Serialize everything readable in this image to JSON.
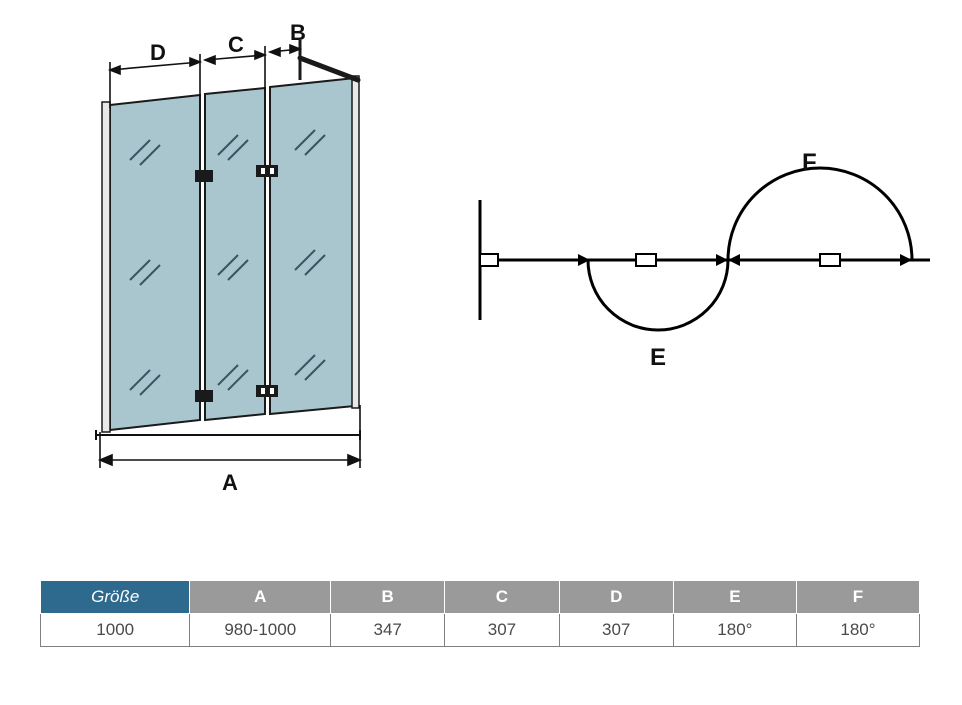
{
  "diagram": {
    "labels": {
      "A": "A",
      "B": "B",
      "C": "C",
      "D": "D",
      "E": "E",
      "F": "F"
    },
    "panel_fill": "#a9c6cf",
    "panel_stroke": "#1a1a1a",
    "frame_color": "#1a1a1a",
    "glass_hatch_color": "#3a5560",
    "dim_line_color": "#111111",
    "swing_line_color": "#000000"
  },
  "table": {
    "header_first_bg": "#2e6a8e",
    "header_rest_bg": "#9a9a9a",
    "columns": [
      "Größe",
      "A",
      "B",
      "C",
      "D",
      "E",
      "F"
    ],
    "col_widths_pct": [
      17,
      16,
      13,
      13,
      13,
      14,
      14
    ],
    "rows": [
      [
        "1000",
        "980-1000",
        "347",
        "307",
        "307",
        "180°",
        "180°"
      ]
    ]
  }
}
